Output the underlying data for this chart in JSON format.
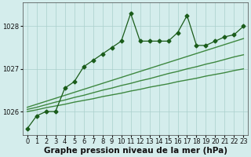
{
  "x": [
    0,
    1,
    2,
    3,
    4,
    5,
    6,
    7,
    8,
    9,
    10,
    11,
    12,
    13,
    14,
    15,
    16,
    17,
    18,
    19,
    20,
    21,
    22,
    23
  ],
  "main_line": [
    1025.6,
    1025.9,
    1026.0,
    1026.0,
    1026.55,
    1026.7,
    1027.05,
    1027.2,
    1027.35,
    1027.5,
    1027.65,
    1028.3,
    1027.65,
    1027.65,
    1027.65,
    1027.65,
    1027.85,
    1028.25,
    1027.55,
    1027.55,
    1027.65,
    1027.75,
    1027.8,
    1028.0
  ],
  "smooth1": [
    1026.0,
    1026.04,
    1026.09,
    1026.13,
    1026.17,
    1026.22,
    1026.26,
    1026.3,
    1026.35,
    1026.39,
    1026.43,
    1026.48,
    1026.52,
    1026.57,
    1026.61,
    1026.65,
    1026.7,
    1026.74,
    1026.78,
    1026.83,
    1026.87,
    1026.91,
    1026.96,
    1027.0
  ],
  "smooth2": [
    1026.05,
    1026.1,
    1026.16,
    1026.22,
    1026.27,
    1026.33,
    1026.38,
    1026.44,
    1026.5,
    1026.55,
    1026.61,
    1026.66,
    1026.72,
    1026.77,
    1026.83,
    1026.89,
    1026.94,
    1027.0,
    1027.05,
    1027.11,
    1027.16,
    1027.22,
    1027.28,
    1027.33
  ],
  "smooth3": [
    1026.1,
    1026.17,
    1026.24,
    1026.31,
    1026.38,
    1026.45,
    1026.52,
    1026.59,
    1026.66,
    1026.73,
    1026.8,
    1026.87,
    1026.94,
    1027.01,
    1027.08,
    1027.15,
    1027.22,
    1027.29,
    1027.36,
    1027.43,
    1027.5,
    1027.57,
    1027.64,
    1027.71
  ],
  "bg_color": "#d4edec",
  "grid_color": "#aacfcc",
  "line_color": "#1a5c1a",
  "smooth_color": "#2e7d2e",
  "xlabel": "Graphe pression niveau de la mer (hPa)",
  "ylim": [
    1025.45,
    1028.55
  ],
  "yticks": [
    1026,
    1027,
    1028
  ],
  "xticks": [
    0,
    1,
    2,
    3,
    4,
    5,
    6,
    7,
    8,
    9,
    10,
    11,
    12,
    13,
    14,
    15,
    16,
    17,
    18,
    19,
    20,
    21,
    22,
    23
  ],
  "marker": "D",
  "marker_size": 2.5,
  "line_width": 0.9,
  "smooth_lw": 1.0,
  "xlabel_fontsize": 7.5,
  "tick_fontsize": 6.0
}
